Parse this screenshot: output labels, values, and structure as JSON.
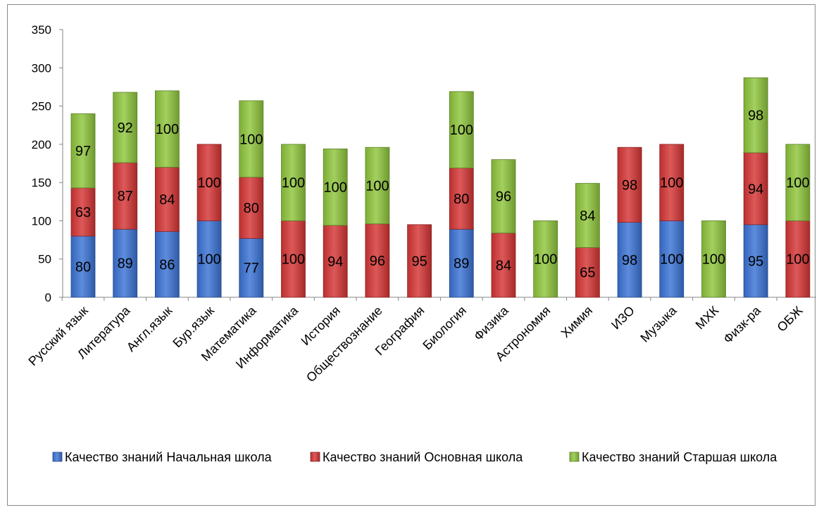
{
  "chart_data": {
    "type": "bar",
    "stacked": true,
    "title": "",
    "xlabel": "",
    "ylabel": "",
    "ylim": [
      0,
      350
    ],
    "yticks": [
      0,
      50,
      100,
      150,
      200,
      250,
      300,
      350
    ],
    "grid": false,
    "legend_position": "bottom",
    "categories": [
      "Русский язык",
      "Литература",
      "Англ.язык",
      "Бур.язык",
      "Математика",
      "Информатика",
      "История",
      "Обществознание",
      "География",
      "Биология",
      "Физика",
      "Астрономия",
      "Химия",
      "ИЗО",
      "Музыка",
      "МХК",
      "Физк-ра",
      "ОБЖ"
    ],
    "series": [
      {
        "name": "Качество знаний Начальная школа",
        "color": "#3b73d6",
        "values": [
          80,
          89,
          86,
          100,
          77,
          null,
          null,
          null,
          null,
          89,
          null,
          null,
          null,
          98,
          100,
          null,
          95,
          null
        ]
      },
      {
        "name": "Качество знаний Основная школа",
        "color": "#d63535",
        "values": [
          63,
          87,
          84,
          100,
          80,
          100,
          94,
          96,
          95,
          80,
          84,
          null,
          65,
          98,
          100,
          null,
          94,
          100
        ]
      },
      {
        "name": "Качество знаний Старшая школа",
        "color": "#8fc63c",
        "values": [
          97,
          92,
          100,
          null,
          100,
          100,
          100,
          100,
          null,
          100,
          96,
          100,
          84,
          null,
          null,
          100,
          98,
          100
        ]
      }
    ]
  }
}
